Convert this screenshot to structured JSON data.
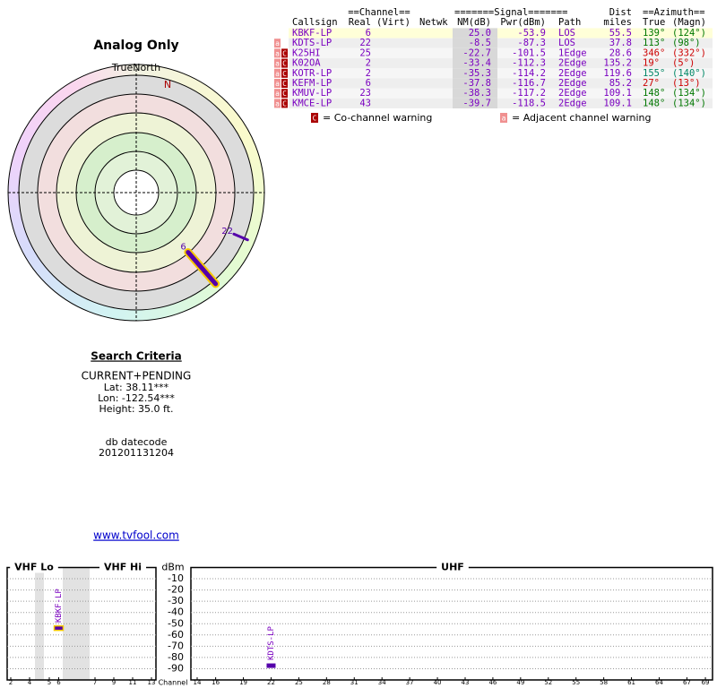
{
  "title": "Analog Only",
  "polar": {
    "north_label": "TrueNorth",
    "n_label": "N",
    "labels": [
      "6",
      "22"
    ],
    "azimuth": [
      139,
      113
    ],
    "nm": [
      25.0,
      -8.5
    ]
  },
  "search": {
    "heading": "Search Criteria",
    "lines": [
      "CURRENT+PENDING",
      "Lat: 38.11***",
      "Lon: -122.54***",
      "Height: 35.0 ft."
    ],
    "db_label": "db datecode",
    "db_code": "201201131204",
    "link": "www.tvfool.com"
  },
  "table": {
    "group_headers": [
      "==Channel==",
      "=======Signal=======",
      "Dist",
      "==Azimuth=="
    ],
    "headers": [
      "Callsign",
      "Real",
      "(Virt)",
      "Netwk",
      "NM(dB)",
      "Pwr(dBm)",
      "Path",
      "miles",
      "True",
      "(Magn)"
    ],
    "rows": [
      {
        "callsign": "KBKF-LP",
        "real": "6",
        "nm": "25.0",
        "pwr": "-53.9",
        "path": "LOS",
        "dist": "55.5",
        "true": "139°",
        "magn": "(124°)",
        "az_color": "#007700"
      },
      {
        "flags": [
          "a"
        ],
        "callsign": "KDTS-LP",
        "real": "22",
        "nm": "-8.5",
        "pwr": "-87.3",
        "path": "LOS",
        "dist": "37.8",
        "true": "113°",
        "magn": "(98°)",
        "az_color": "#007700"
      },
      {
        "flags": [
          "a",
          "C"
        ],
        "callsign": "K25HI",
        "real": "25",
        "nm": "-22.7",
        "pwr": "-101.5",
        "path": "1Edge",
        "dist": "28.6",
        "true": "346°",
        "magn": "(332°)",
        "az_color": "#cc0000"
      },
      {
        "flags": [
          "a",
          "C"
        ],
        "callsign": "K02OA",
        "real": "2",
        "nm": "-33.4",
        "pwr": "-112.3",
        "path": "2Edge",
        "dist": "135.2",
        "true": "19°",
        "magn": "(5°)",
        "az_color": "#cc0000"
      },
      {
        "flags": [
          "a",
          "C"
        ],
        "callsign": "KOTR-LP",
        "real": "2",
        "nm": "-35.3",
        "pwr": "-114.2",
        "path": "2Edge",
        "dist": "119.6",
        "true": "155°",
        "magn": "(140°)",
        "az_color": "#008866"
      },
      {
        "flags": [
          "a",
          "C"
        ],
        "callsign": "KEFM-LP",
        "real": "6",
        "nm": "-37.8",
        "pwr": "-116.7",
        "path": "2Edge",
        "dist": "85.2",
        "true": "27°",
        "magn": "(13°)",
        "az_color": "#cc0000"
      },
      {
        "flags": [
          "a",
          "C"
        ],
        "callsign": "KMUV-LP",
        "real": "23",
        "nm": "-38.3",
        "pwr": "-117.2",
        "path": "2Edge",
        "dist": "109.1",
        "true": "148°",
        "magn": "(134°)",
        "az_color": "#007700"
      },
      {
        "flags": [
          "a",
          "C"
        ],
        "callsign": "KMCE-LP",
        "real": "43",
        "nm": "-39.7",
        "pwr": "-118.5",
        "path": "2Edge",
        "dist": "109.1",
        "true": "148°",
        "magn": "(134°)",
        "az_color": "#007700"
      }
    ]
  },
  "legend": [
    {
      "flag": "C",
      "text": "= Co-channel warning"
    },
    {
      "flag": "a",
      "text": "= Adjacent channel warning"
    }
  ],
  "spectrum": {
    "bands": [
      "VHF Lo",
      "VHF Hi",
      "UHF"
    ],
    "ylabel": "dBm",
    "xlabel": "Channel",
    "ylim": [
      0,
      -100
    ],
    "yticks": [
      -10,
      -20,
      -30,
      -40,
      -50,
      -60,
      -70,
      -80,
      -90
    ],
    "vhf_ticks": [
      2,
      4,
      5,
      6,
      7,
      9,
      11,
      13
    ],
    "uhf_ticks": [
      14,
      16,
      19,
      22,
      25,
      28,
      31,
      34,
      37,
      40,
      43,
      46,
      49,
      52,
      55,
      58,
      61,
      64,
      67,
      69
    ],
    "stations": [
      {
        "name": "KBKF-LP",
        "channel": 6,
        "dbm": -53.9
      },
      {
        "name": "KDTS-LP",
        "channel": 22,
        "dbm": -87.3
      }
    ]
  }
}
